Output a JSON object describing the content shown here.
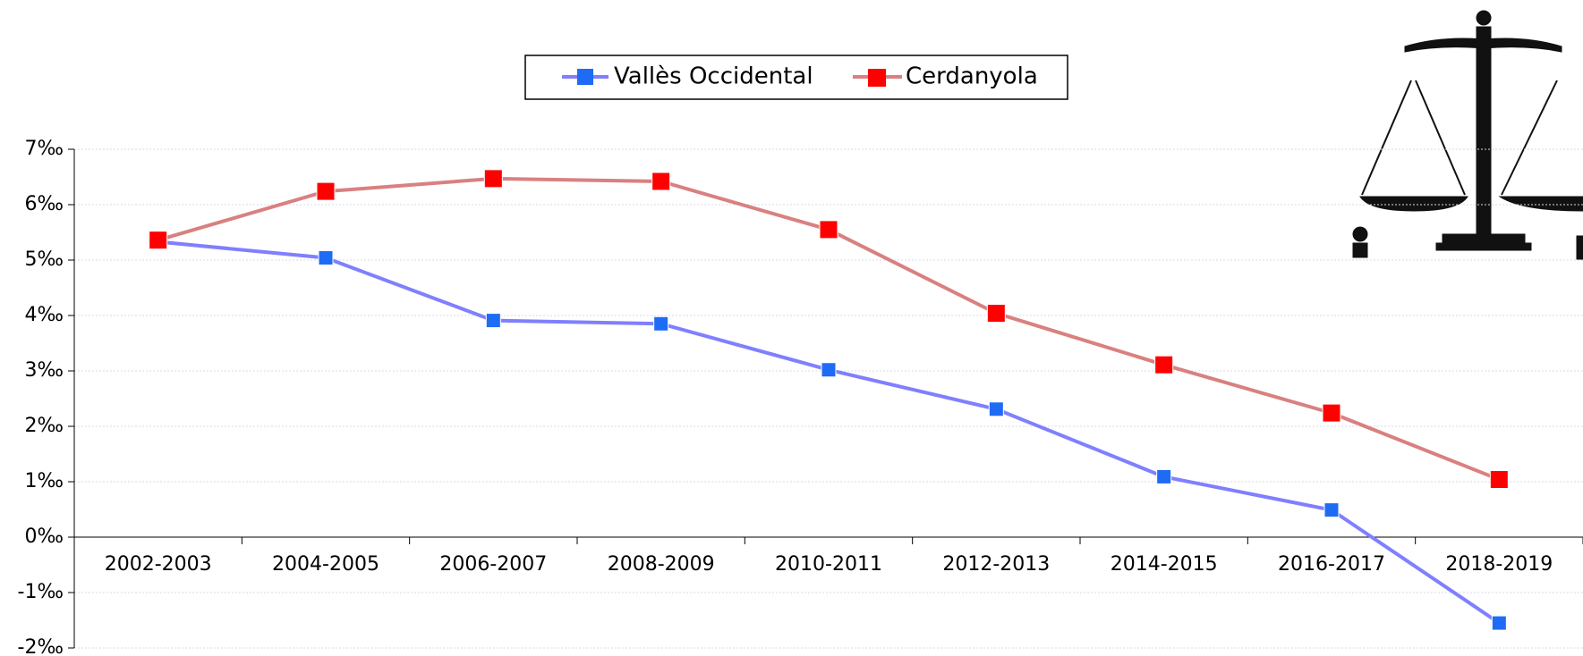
{
  "chart_data": {
    "type": "line",
    "categories": [
      "2002-2003",
      "2004-2005",
      "2006-2007",
      "2008-2009",
      "2010-2011",
      "2012-2013",
      "2014-2015",
      "2016-2017",
      "2018-2019"
    ],
    "series": [
      {
        "name": "Vallès Occidental",
        "color": "#7f7fff",
        "marker_color": "#1e6cf5",
        "values": [
          5.33,
          5.04,
          3.91,
          3.85,
          3.02,
          2.31,
          1.09,
          0.49,
          -1.55
        ]
      },
      {
        "name": "Cerdanyola",
        "color": "#d98080",
        "marker_color": "#ff0000",
        "values": [
          5.36,
          6.24,
          6.47,
          6.42,
          5.55,
          4.04,
          3.11,
          2.24,
          1.04
        ]
      }
    ],
    "ylim": [
      -2,
      7
    ],
    "yticks": [
      {
        "value": -2,
        "label": "-2‰"
      },
      {
        "value": -1,
        "label": "-1‰"
      },
      {
        "value": 0,
        "label": "0‰"
      },
      {
        "value": 1,
        "label": "1‰"
      },
      {
        "value": 2,
        "label": "2‰"
      },
      {
        "value": 3,
        "label": "3‰"
      },
      {
        "value": 4,
        "label": "4‰"
      },
      {
        "value": 5,
        "label": "5‰"
      },
      {
        "value": 6,
        "label": "6‰"
      },
      {
        "value": 7,
        "label": "7‰"
      }
    ],
    "grid": true,
    "legend": "top"
  }
}
